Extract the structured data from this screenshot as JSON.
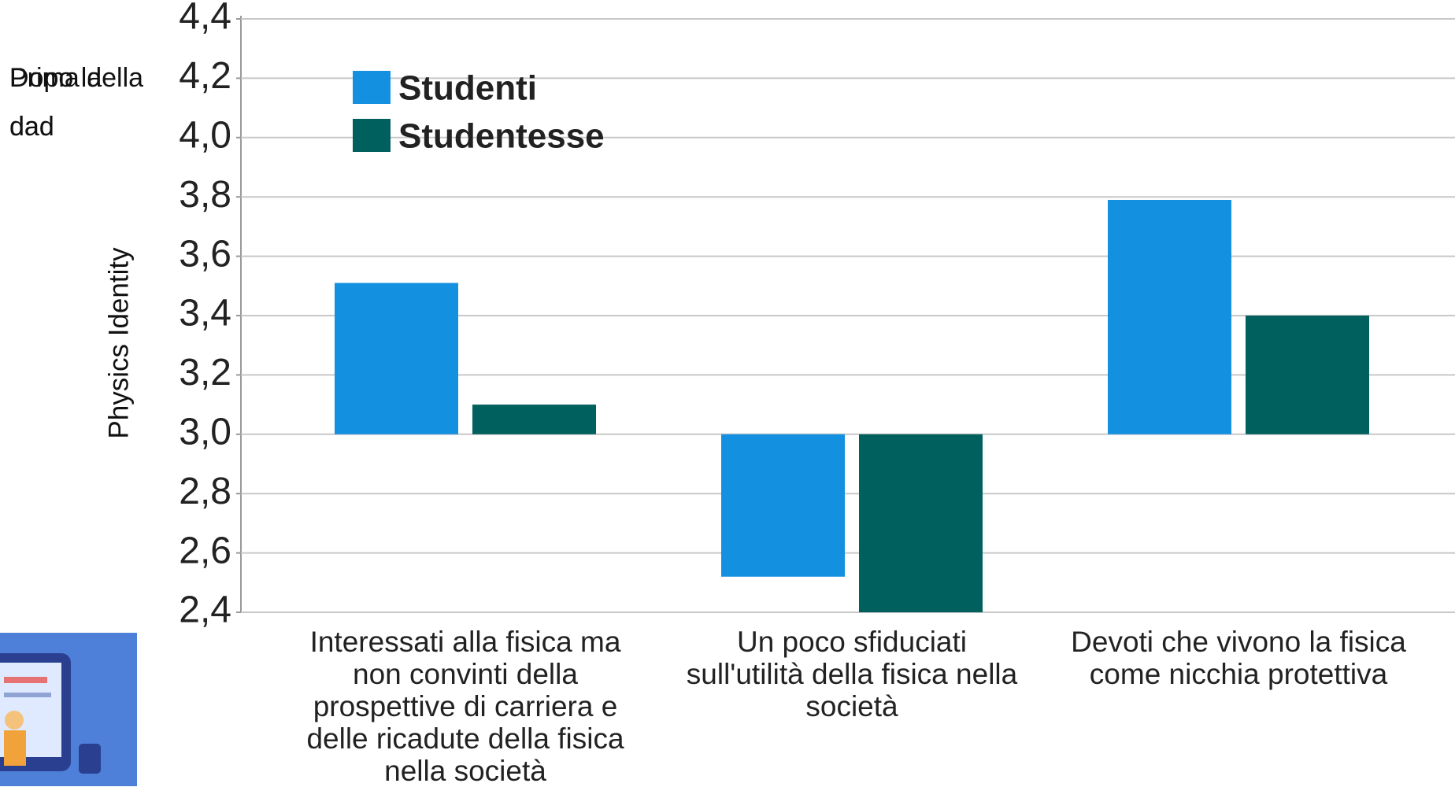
{
  "chart_data": {
    "type": "bar",
    "annotations": [
      "Prima della dad",
      "Dopo la dad"
    ],
    "ylabel": "Physics Identity",
    "categories": [
      "Interessati alla fisica ma non convinti della prospettive di carriera e delle ricadute della fisica nella società",
      "Un poco sfiduciati sull'utilità della fisica nella società",
      "Devoti che vivono la fisica come nicchia protettiva"
    ],
    "series": [
      {
        "name": "Studenti",
        "color": "#1490e0",
        "values": [
          3.51,
          2.52,
          3.79
        ]
      },
      {
        "name": "Studentesse",
        "color": "#00605e",
        "values": [
          3.1,
          2.4,
          3.4
        ]
      }
    ],
    "baseline": 3,
    "ylim": [
      2.4,
      4.4
    ],
    "yticks": [
      {
        "value": 2.4,
        "label": "2,4"
      },
      {
        "value": 2.6,
        "label": "2,6"
      },
      {
        "value": 2.8,
        "label": "2,8"
      },
      {
        "value": 3,
        "label": "3,0"
      },
      {
        "value": 3.2,
        "label": "3,2"
      },
      {
        "value": 3.4,
        "label": "3,4"
      },
      {
        "value": 3.6,
        "label": "3,6"
      },
      {
        "value": 3.8,
        "label": "3,8"
      },
      {
        "value": 4,
        "label": "4,0"
      },
      {
        "value": 4.2,
        "label": "4,2"
      },
      {
        "value": 4.4,
        "label": "4,4"
      }
    ],
    "grid": true
  }
}
